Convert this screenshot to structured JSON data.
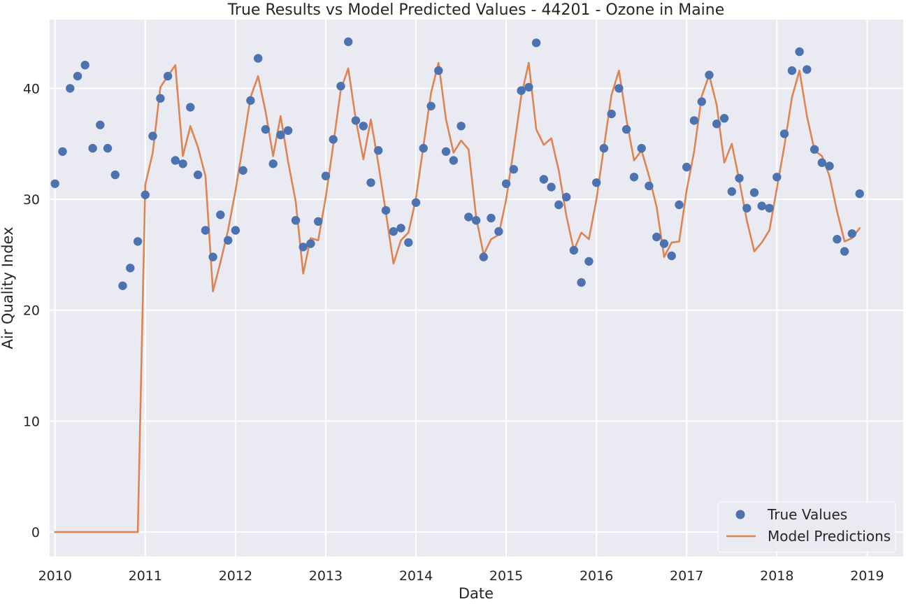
{
  "chart_data": {
    "type": "line",
    "title": "True Results vs Model Predicted Values - 44201 - Ozone in Maine",
    "xlabel": "Date",
    "ylabel": "Air Quality Index",
    "xlim": [
      2009.94,
      2019.4
    ],
    "ylim": [
      -2.2,
      46.2
    ],
    "x_ticks": [
      2010,
      2011,
      2012,
      2013,
      2014,
      2015,
      2016,
      2017,
      2018,
      2019
    ],
    "x_tick_labels": [
      "2010",
      "2011",
      "2012",
      "2013",
      "2014",
      "2015",
      "2016",
      "2017",
      "2018",
      "2019"
    ],
    "y_ticks": [
      0,
      10,
      20,
      30,
      40
    ],
    "y_tick_labels": [
      "0",
      "10",
      "20",
      "30",
      "40"
    ],
    "grid": true,
    "background": "#eaeaf2",
    "legend": {
      "position": "bottom-right"
    },
    "x": [
      2010.0,
      2010.083,
      2010.167,
      2010.25,
      2010.333,
      2010.417,
      2010.5,
      2010.583,
      2010.667,
      2010.75,
      2010.833,
      2010.917,
      2011.0,
      2011.083,
      2011.167,
      2011.25,
      2011.333,
      2011.417,
      2011.5,
      2011.583,
      2011.667,
      2011.75,
      2011.833,
      2011.917,
      2012.0,
      2012.083,
      2012.167,
      2012.25,
      2012.333,
      2012.417,
      2012.5,
      2012.583,
      2012.667,
      2012.75,
      2012.833,
      2012.917,
      2013.0,
      2013.083,
      2013.167,
      2013.25,
      2013.333,
      2013.417,
      2013.5,
      2013.583,
      2013.667,
      2013.75,
      2013.833,
      2013.917,
      2014.0,
      2014.083,
      2014.167,
      2014.25,
      2014.333,
      2014.417,
      2014.5,
      2014.583,
      2014.667,
      2014.75,
      2014.833,
      2014.917,
      2015.0,
      2015.083,
      2015.167,
      2015.25,
      2015.333,
      2015.417,
      2015.5,
      2015.583,
      2015.667,
      2015.75,
      2015.833,
      2015.917,
      2016.0,
      2016.083,
      2016.167,
      2016.25,
      2016.333,
      2016.417,
      2016.5,
      2016.583,
      2016.667,
      2016.75,
      2016.833,
      2016.917,
      2017.0,
      2017.083,
      2017.167,
      2017.25,
      2017.333,
      2017.417,
      2017.5,
      2017.583,
      2017.667,
      2017.75,
      2017.833,
      2017.917,
      2018.0,
      2018.083,
      2018.167,
      2018.25,
      2018.333,
      2018.417,
      2018.5,
      2018.583,
      2018.667,
      2018.75,
      2018.833,
      2018.917
    ],
    "series": [
      {
        "name": "True Values",
        "kind": "scatter",
        "color": "#4c72b0",
        "values": [
          31.4,
          34.3,
          40.0,
          41.1,
          42.1,
          34.6,
          36.7,
          34.6,
          32.2,
          22.2,
          23.8,
          26.2,
          30.4,
          35.7,
          39.1,
          41.1,
          33.5,
          33.2,
          38.3,
          32.2,
          27.2,
          24.8,
          28.6,
          26.3,
          27.2,
          32.6,
          38.9,
          42.7,
          36.3,
          33.2,
          35.8,
          36.2,
          28.1,
          25.7,
          26.0,
          28.0,
          32.1,
          35.4,
          40.2,
          44.2,
          37.1,
          36.6,
          31.5,
          34.4,
          29.0,
          27.1,
          27.4,
          26.1,
          29.7,
          34.6,
          38.4,
          41.6,
          34.3,
          33.5,
          36.6,
          28.4,
          28.1,
          24.8,
          28.3,
          27.1,
          31.4,
          32.7,
          39.8,
          40.1,
          44.1,
          31.8,
          31.1,
          29.5,
          30.2,
          25.4,
          22.5,
          24.4,
          31.5,
          34.6,
          37.7,
          40.0,
          36.3,
          32.0,
          34.6,
          31.2,
          26.6,
          26.0,
          24.9,
          29.5,
          32.9,
          37.1,
          38.8,
          41.2,
          36.8,
          37.3,
          30.7,
          31.9,
          29.2,
          30.6,
          29.4,
          29.2,
          32.0,
          35.9,
          41.6,
          43.3,
          41.7,
          34.5,
          33.3,
          33.0,
          26.4,
          25.3,
          26.9,
          30.5
        ]
      },
      {
        "name": "Model Predictions",
        "kind": "line",
        "color": "#dd8452",
        "values": [
          0,
          0,
          0,
          0,
          0,
          0,
          0,
          0,
          0,
          0,
          0,
          0,
          31.3,
          34.2,
          40.1,
          41.1,
          42.1,
          33.9,
          36.6,
          34.7,
          32.1,
          21.7,
          24.3,
          27.2,
          30.8,
          34.9,
          39.2,
          41.1,
          37.9,
          33.9,
          37.5,
          33.4,
          29.8,
          23.3,
          26.5,
          26.3,
          30.2,
          34.9,
          39.9,
          41.8,
          37.2,
          33.6,
          37.2,
          33.2,
          28.8,
          24.2,
          26.3,
          27.0,
          30.1,
          34.8,
          39.6,
          42.3,
          37.2,
          34.2,
          35.3,
          34.5,
          28.4,
          25.0,
          26.4,
          26.8,
          30.0,
          34.5,
          39.3,
          42.3,
          36.3,
          34.9,
          35.5,
          32.6,
          28.5,
          25.4,
          27.0,
          26.4,
          30.0,
          34.7,
          39.4,
          41.6,
          37.2,
          33.5,
          34.4,
          32.1,
          29.3,
          24.8,
          26.1,
          26.2,
          30.8,
          34.3,
          39.3,
          41.2,
          38.5,
          33.3,
          35.0,
          31.7,
          28.1,
          25.3,
          26.1,
          27.2,
          31.0,
          34.8,
          39.2,
          41.6,
          37.5,
          34.4,
          33.9,
          32.1,
          28.9,
          26.2,
          26.5,
          27.4
        ]
      }
    ]
  }
}
